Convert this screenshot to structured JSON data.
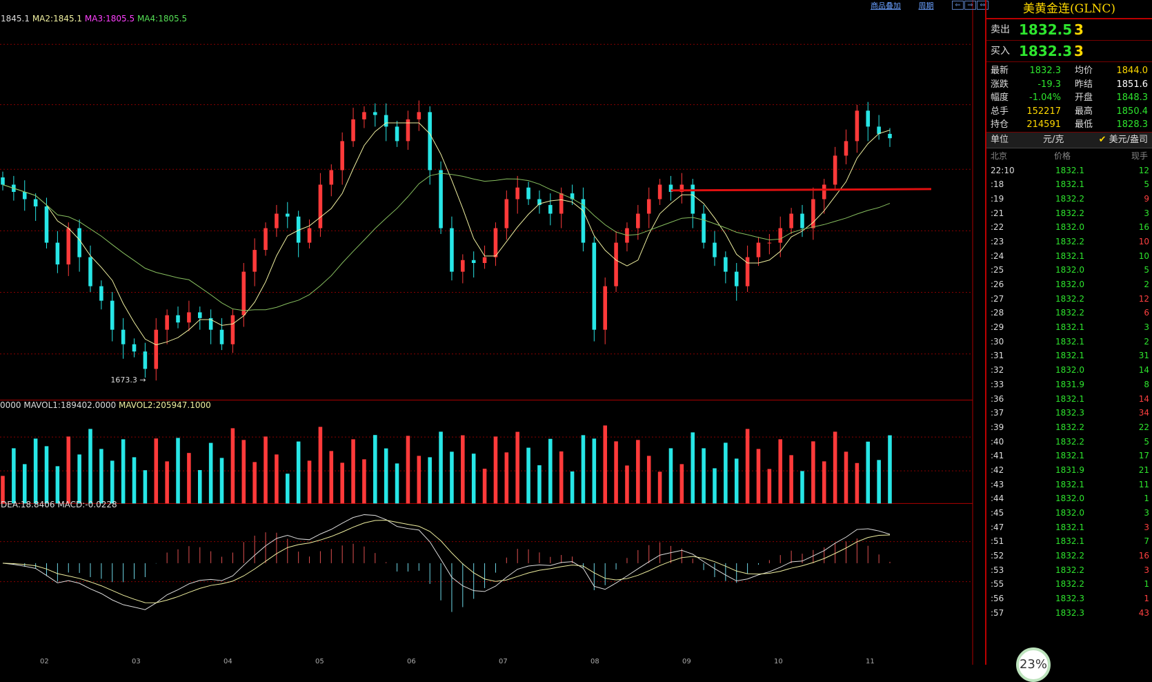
{
  "toolbar": {
    "overlay_label": "商品叠加",
    "period_label": "周期"
  },
  "price_indicator": {
    "ma1": "1845.1",
    "ma2": "MA2:1845.1",
    "ma3": "MA3:1805.5",
    "ma4": "MA4:1805.5"
  },
  "volume_indicator": {
    "vol": "0000",
    "mavol1": "MAVOL1:189402.0000",
    "mavol2": "MAVOL2:205947.1000"
  },
  "macd_indicator": {
    "dea": "DEA:18.8406",
    "macd": "MACD:-0.0228"
  },
  "low_marker": "1673.3",
  "colors": {
    "up": "#ff3a3a",
    "down": "#27e6e6",
    "ma_fast": "#f0f0a0",
    "ma_slow": "#88c060",
    "panel_border": "#b00000",
    "price_green": "#2ee62e"
  },
  "chart_data": {
    "type": "candlestick",
    "x_tick_labels": [
      "02",
      "03",
      "04",
      "05",
      "06",
      "07",
      "08",
      "09",
      "10",
      "11"
    ],
    "ohlc_approx_close": [
      1800,
      1795,
      1790,
      1785,
      1760,
      1745,
      1770,
      1750,
      1730,
      1720,
      1700,
      1690,
      1685,
      1673,
      1700,
      1710,
      1705,
      1712,
      1708,
      1700,
      1690,
      1710,
      1740,
      1755,
      1770,
      1780,
      1778,
      1760,
      1770,
      1800,
      1810,
      1830,
      1845,
      1850,
      1848,
      1840,
      1830,
      1845,
      1850,
      1810,
      1770,
      1740,
      1748,
      1746,
      1750,
      1770,
      1790,
      1798,
      1790,
      1786,
      1780,
      1794,
      1790,
      1760,
      1700,
      1730,
      1760,
      1770,
      1780,
      1790,
      1800,
      1795,
      1800,
      1780,
      1760,
      1750,
      1740,
      1730,
      1750,
      1760,
      1760,
      1770,
      1780,
      1770,
      1790,
      1800,
      1820,
      1830,
      1851,
      1840,
      1835,
      1832
    ],
    "ma_fast_description": "yellow short moving average",
    "ma_slow_description": "green long moving average",
    "annotation_line_price": 1796,
    "min_label": 1673.3
  },
  "panel": {
    "title": "美黄金连(GLNC)",
    "ask_label": "卖出",
    "ask_price": "1832.5",
    "ask_qty": "3",
    "bid_label": "买入",
    "bid_price": "1832.3",
    "bid_qty": "3",
    "stats": [
      {
        "l1": "最新",
        "v1": "1832.3",
        "c1": "#2ee62e",
        "l2": "均价",
        "v2": "1844.0",
        "c2": "#ffd900"
      },
      {
        "l1": "涨跌",
        "v1": "-19.3",
        "c1": "#2ee62e",
        "l2": "昨结",
        "v2": "1851.6",
        "c2": "#ffffff"
      },
      {
        "l1": "幅度",
        "v1": "-1.04%",
        "c1": "#2ee62e",
        "l2": "开盘",
        "v2": "1848.3",
        "c2": "#2ee62e"
      },
      {
        "l1": "总手",
        "v1": "152217",
        "c1": "#ffd900",
        "l2": "最高",
        "v2": "1850.4",
        "c2": "#2ee62e"
      },
      {
        "l1": "持仓",
        "v1": "214591",
        "c1": "#ffd900",
        "l2": "最低",
        "v2": "1828.3",
        "c2": "#2ee62e"
      }
    ],
    "unit_label": "单位",
    "unit_value": "元/克",
    "unit_check": "✔",
    "unit_alt": "美元/盎司",
    "tick_headers": {
      "time": "北京",
      "price": "价格",
      "qty": "现手"
    },
    "ticks": [
      {
        "t": "22:10",
        "p": "1832.1",
        "q": "12",
        "c": "g"
      },
      {
        "t": ":18",
        "p": "1832.1",
        "q": "5",
        "c": "g"
      },
      {
        "t": ":19",
        "p": "1832.2",
        "q": "9",
        "c": "r"
      },
      {
        "t": ":21",
        "p": "1832.2",
        "q": "3",
        "c": "g"
      },
      {
        "t": ":22",
        "p": "1832.0",
        "q": "16",
        "c": "g"
      },
      {
        "t": ":23",
        "p": "1832.2",
        "q": "10",
        "c": "r"
      },
      {
        "t": ":24",
        "p": "1832.1",
        "q": "10",
        "c": "g"
      },
      {
        "t": ":25",
        "p": "1832.0",
        "q": "5",
        "c": "g"
      },
      {
        "t": ":26",
        "p": "1832.0",
        "q": "2",
        "c": "g"
      },
      {
        "t": ":27",
        "p": "1832.2",
        "q": "12",
        "c": "r"
      },
      {
        "t": ":28",
        "p": "1832.2",
        "q": "6",
        "c": "r"
      },
      {
        "t": ":29",
        "p": "1832.1",
        "q": "3",
        "c": "g"
      },
      {
        "t": ":30",
        "p": "1832.1",
        "q": "2",
        "c": "g"
      },
      {
        "t": ":31",
        "p": "1832.1",
        "q": "31",
        "c": "g"
      },
      {
        "t": ":32",
        "p": "1832.0",
        "q": "14",
        "c": "g"
      },
      {
        "t": ":33",
        "p": "1831.9",
        "q": "8",
        "c": "g"
      },
      {
        "t": ":36",
        "p": "1832.1",
        "q": "14",
        "c": "r"
      },
      {
        "t": ":37",
        "p": "1832.3",
        "q": "34",
        "c": "r"
      },
      {
        "t": ":39",
        "p": "1832.2",
        "q": "22",
        "c": "g"
      },
      {
        "t": ":40",
        "p": "1832.2",
        "q": "5",
        "c": "g"
      },
      {
        "t": ":41",
        "p": "1832.1",
        "q": "17",
        "c": "g"
      },
      {
        "t": ":42",
        "p": "1831.9",
        "q": "21",
        "c": "g"
      },
      {
        "t": ":43",
        "p": "1832.1",
        "q": "11",
        "c": "g"
      },
      {
        "t": ":44",
        "p": "1832.0",
        "q": "1",
        "c": "g"
      },
      {
        "t": ":45",
        "p": "1832.0",
        "q": "3",
        "c": "g"
      },
      {
        "t": ":47",
        "p": "1832.1",
        "q": "3",
        "c": "r"
      },
      {
        "t": ":51",
        "p": "1832.1",
        "q": "7",
        "c": "g"
      },
      {
        "t": ":52",
        "p": "1832.2",
        "q": "16",
        "c": "r"
      },
      {
        "t": ":53",
        "p": "1832.2",
        "q": "3",
        "c": "r"
      },
      {
        "t": ":55",
        "p": "1832.2",
        "q": "1",
        "c": "g"
      },
      {
        "t": ":56",
        "p": "1832.3",
        "q": "1",
        "c": "r"
      },
      {
        "t": ":57",
        "p": "1832.3",
        "q": "43",
        "c": "r"
      }
    ],
    "progress_badge": "23%"
  }
}
